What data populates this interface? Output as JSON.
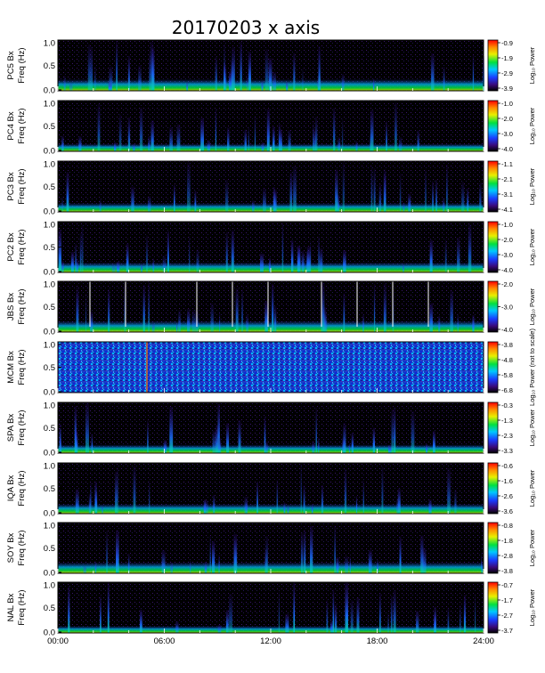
{
  "chart_data": {
    "type": "heatmap",
    "title": "20170203 x axis",
    "x_ticks": [
      "00:00",
      "06:00",
      "12:00",
      "18:00",
      "24:00"
    ],
    "x_range_hours": [
      0,
      24
    ],
    "y_ticks": [
      "0.0",
      "0.5",
      "1.0"
    ],
    "y_range_hz": [
      0,
      1.0
    ],
    "freq_label": "Freq (Hz)",
    "colorbar_label": "Log₁₀ Power",
    "panels": [
      {
        "station": "PC5 Bx",
        "cbar_ticks": [
          "-0.9",
          "-1.9",
          "-2.9",
          "-3.9"
        ],
        "cbar_label": "Log₁₀ Power"
      },
      {
        "station": "PC4 Bx",
        "cbar_ticks": [
          "-1.0",
          "-2.0",
          "-3.0",
          "-4.0"
        ],
        "cbar_label": "Log₁₀ Power"
      },
      {
        "station": "PC3 Bx",
        "cbar_ticks": [
          "-1.1",
          "-2.1",
          "-3.1",
          "-4.1"
        ],
        "cbar_label": "Log₁₀ Power"
      },
      {
        "station": "PC2 Bx",
        "cbar_ticks": [
          "-1.0",
          "-2.0",
          "-3.0",
          "-4.0"
        ],
        "cbar_label": "Log₁₀ Power"
      },
      {
        "station": "JBS Bx",
        "cbar_ticks": [
          "-2.0",
          "-3.0",
          "-4.0"
        ],
        "cbar_label": "Log₁₀ Power"
      },
      {
        "station": "MCM Bx",
        "cbar_ticks": [
          "-3.8",
          "-4.8",
          "-5.8",
          "-6.8"
        ],
        "cbar_label": "Log₁₀ Power (not to scale)"
      },
      {
        "station": "SPA Bx",
        "cbar_ticks": [
          "-0.3",
          "-1.3",
          "-2.3",
          "-3.3"
        ],
        "cbar_label": "Log₁₀ Power"
      },
      {
        "station": "IQA Bx",
        "cbar_ticks": [
          "-0.6",
          "-1.6",
          "-2.6",
          "-3.6"
        ],
        "cbar_label": "Log₁₀ Power"
      },
      {
        "station": "SOY Bx",
        "cbar_ticks": [
          "-0.8",
          "-1.8",
          "-2.8",
          "-3.8"
        ],
        "cbar_label": "Log₁₀ Power"
      },
      {
        "station": "NAL Bx",
        "cbar_ticks": [
          "-0.7",
          "-1.7",
          "-2.7",
          "-3.7"
        ],
        "cbar_label": "Log₁₀ Power"
      }
    ]
  }
}
